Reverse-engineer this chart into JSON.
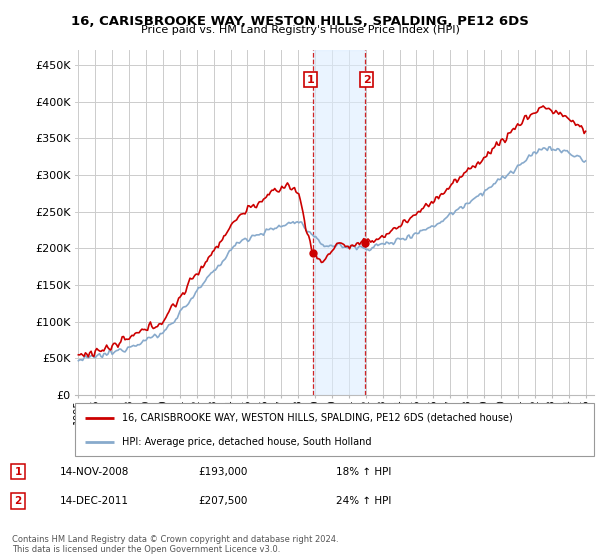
{
  "title": "16, CARISBROOKE WAY, WESTON HILLS, SPALDING, PE12 6DS",
  "subtitle": "Price paid vs. HM Land Registry's House Price Index (HPI)",
  "ylabel_ticks": [
    "£0",
    "£50K",
    "£100K",
    "£150K",
    "£200K",
    "£250K",
    "£300K",
    "£350K",
    "£400K",
    "£450K"
  ],
  "ytick_values": [
    0,
    50000,
    100000,
    150000,
    200000,
    250000,
    300000,
    350000,
    400000,
    450000
  ],
  "ylim": [
    0,
    470000
  ],
  "xlim_start": 1994.8,
  "xlim_end": 2025.5,
  "red_color": "#cc0000",
  "blue_color": "#88aacc",
  "highlight_fill": "#ddeeff",
  "highlight_alpha": 0.6,
  "purchase1_x": 2008.87,
  "purchase1_y": 193000,
  "purchase2_x": 2011.95,
  "purchase2_y": 207500,
  "legend_label_red": "16, CARISBROOKE WAY, WESTON HILLS, SPALDING, PE12 6DS (detached house)",
  "legend_label_blue": "HPI: Average price, detached house, South Holland",
  "table_row1": [
    "1",
    "14-NOV-2008",
    "£193,000",
    "18% ↑ HPI"
  ],
  "table_row2": [
    "2",
    "14-DEC-2011",
    "£207,500",
    "24% ↑ HPI"
  ],
  "footnote": "Contains HM Land Registry data © Crown copyright and database right 2024.\nThis data is licensed under the Open Government Licence v3.0.",
  "bg_color": "#ffffff",
  "grid_color": "#cccccc"
}
